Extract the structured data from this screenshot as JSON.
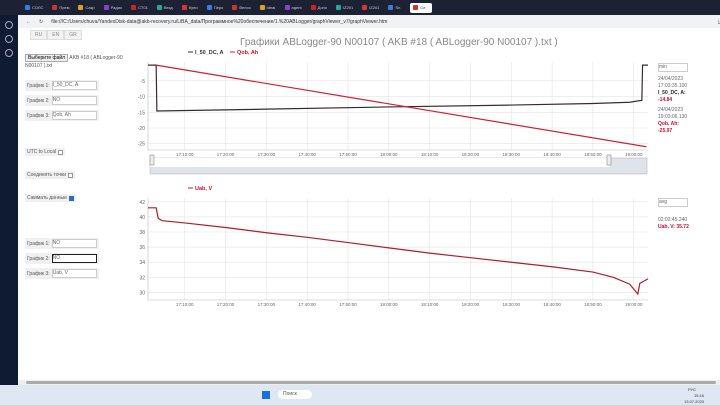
{
  "browser": {
    "tabs": [
      "СОЛС",
      "Прем",
      "Сакр",
      "Радио",
      "СТ01",
      "Везд",
      "Купи",
      "Перо",
      "Велоз",
      "Ideal",
      "agent",
      "Допо",
      "IZ201",
      "IZ201",
      "Sn",
      "Се"
    ],
    "url": "file:///C:/Users/chuva/YandexDisk-data@akb-recovery.ru/LiBA_data/Программное%20обеспечение/1.%20ABLogger/graphViewer_v7/graphViewer.htm"
  },
  "lang": [
    "RU",
    "EN",
    "GR"
  ],
  "title": "Графики ABLogger-90 N00107 ( AKB #18 ( ABLogger-90 N00107 ).txt )",
  "file": {
    "button": "Выберите файл",
    "name": "AKB #18 ( ABLogger-90 N00107 ).txt"
  },
  "top_selects": [
    {
      "label": "График 1:",
      "value": "I_50_DC, A"
    },
    {
      "label": "График 2:",
      "value": "NO"
    },
    {
      "label": "График 3:",
      "value": "Qob, Ah"
    }
  ],
  "options": {
    "utc": "UTC to Local",
    "utc_checked": false,
    "connect": "Соединять точки",
    "connect_checked": false,
    "smooth": "Сжимать данные",
    "smooth_checked": true
  },
  "bottom_selects": [
    {
      "label": "График 1:",
      "value": "NO"
    },
    {
      "label": "График 2:",
      "value": "NO"
    },
    {
      "label": "График 3:",
      "value": "Uab, V"
    }
  ],
  "chart_data": [
    {
      "type": "line",
      "legend": [
        "I_50_DC, A",
        "Qob, Ah"
      ],
      "legend_position": "top-left",
      "grid": true,
      "x_ticks": [
        "17:10:00",
        "17:20:00",
        "17:30:00",
        "17:40:00",
        "17:50:00",
        "18:00:00",
        "18:10:00",
        "18:20:00",
        "18:30:00",
        "18:40:00",
        "18:50:00",
        "19:00:00"
      ],
      "y_ticks": [
        -5,
        -10,
        -15,
        -20,
        -25
      ],
      "ylim": [
        -27,
        1
      ],
      "xlim": [
        "17:01:00",
        "19:03:30"
      ],
      "series": [
        {
          "name": "I_50_DC, A",
          "color": "#3a2a2e",
          "x": [
            "17:01:00",
            "17:03:00",
            "17:03:10",
            "17:30:00",
            "18:00:00",
            "18:30:00",
            "18:50:00",
            "18:59:00",
            "19:02:00",
            "19:02:10",
            "19:03:30"
          ],
          "y": [
            0,
            0,
            -14.6,
            -14.0,
            -13.3,
            -12.7,
            -12.2,
            -11.8,
            -11.2,
            0,
            0
          ]
        },
        {
          "name": "Qob, Ah",
          "color": "#d0202e",
          "x": [
            "17:03:00",
            "19:03:06"
          ],
          "y": [
            0,
            -25.97
          ]
        }
      ]
    },
    {
      "type": "line",
      "legend": [
        "Uab, V"
      ],
      "legend_position": "top-left",
      "grid": true,
      "x_ticks": [
        "17:10:00",
        "17:20:00",
        "17:30:00",
        "17:40:00",
        "17:50:00",
        "18:00:00",
        "18:10:00",
        "18:20:00",
        "18:30:00",
        "18:40:00",
        "18:50:00",
        "19:00:00"
      ],
      "y_ticks": [
        42,
        40,
        38,
        36,
        34,
        32,
        30
      ],
      "ylim": [
        29,
        42.5
      ],
      "xlim": [
        "17:01:00",
        "19:03:30"
      ],
      "series": [
        {
          "name": "Uab, V",
          "color": "#b01c2c",
          "x": [
            "17:01:00",
            "17:03:00",
            "17:03:30",
            "17:04:30",
            "17:10:00",
            "17:20:00",
            "17:30:00",
            "17:40:00",
            "17:50:00",
            "18:00:00",
            "18:10:00",
            "18:20:00",
            "18:30:00",
            "18:40:00",
            "18:50:00",
            "18:55:00",
            "18:59:00",
            "19:01:00",
            "19:01:30",
            "19:03:30"
          ],
          "y": [
            41.2,
            41.2,
            39.8,
            39.5,
            39.2,
            38.6,
            37.9,
            37.3,
            36.6,
            35.9,
            35.2,
            34.6,
            34.0,
            33.4,
            32.7,
            32.0,
            31.1,
            29.8,
            31.2,
            31.8
          ]
        }
      ]
    }
  ],
  "right1": {
    "mode": "min",
    "t1": "24/04/2023 17:03:35.100",
    "v1_label": "I_50_DC, A:",
    "v1": "-14.84",
    "t2": "24/04/2023 19:03:06.130",
    "v2_label": "Qob, Ah:",
    "v2": "-25.97"
  },
  "right2": {
    "mode": "avg",
    "t": "02:02:45.240",
    "v": "Uab, V: 35.72"
  },
  "taskbar": {
    "search": "Поиск",
    "lang": "РУС",
    "time": "15:16",
    "date": "13.07.2023"
  }
}
